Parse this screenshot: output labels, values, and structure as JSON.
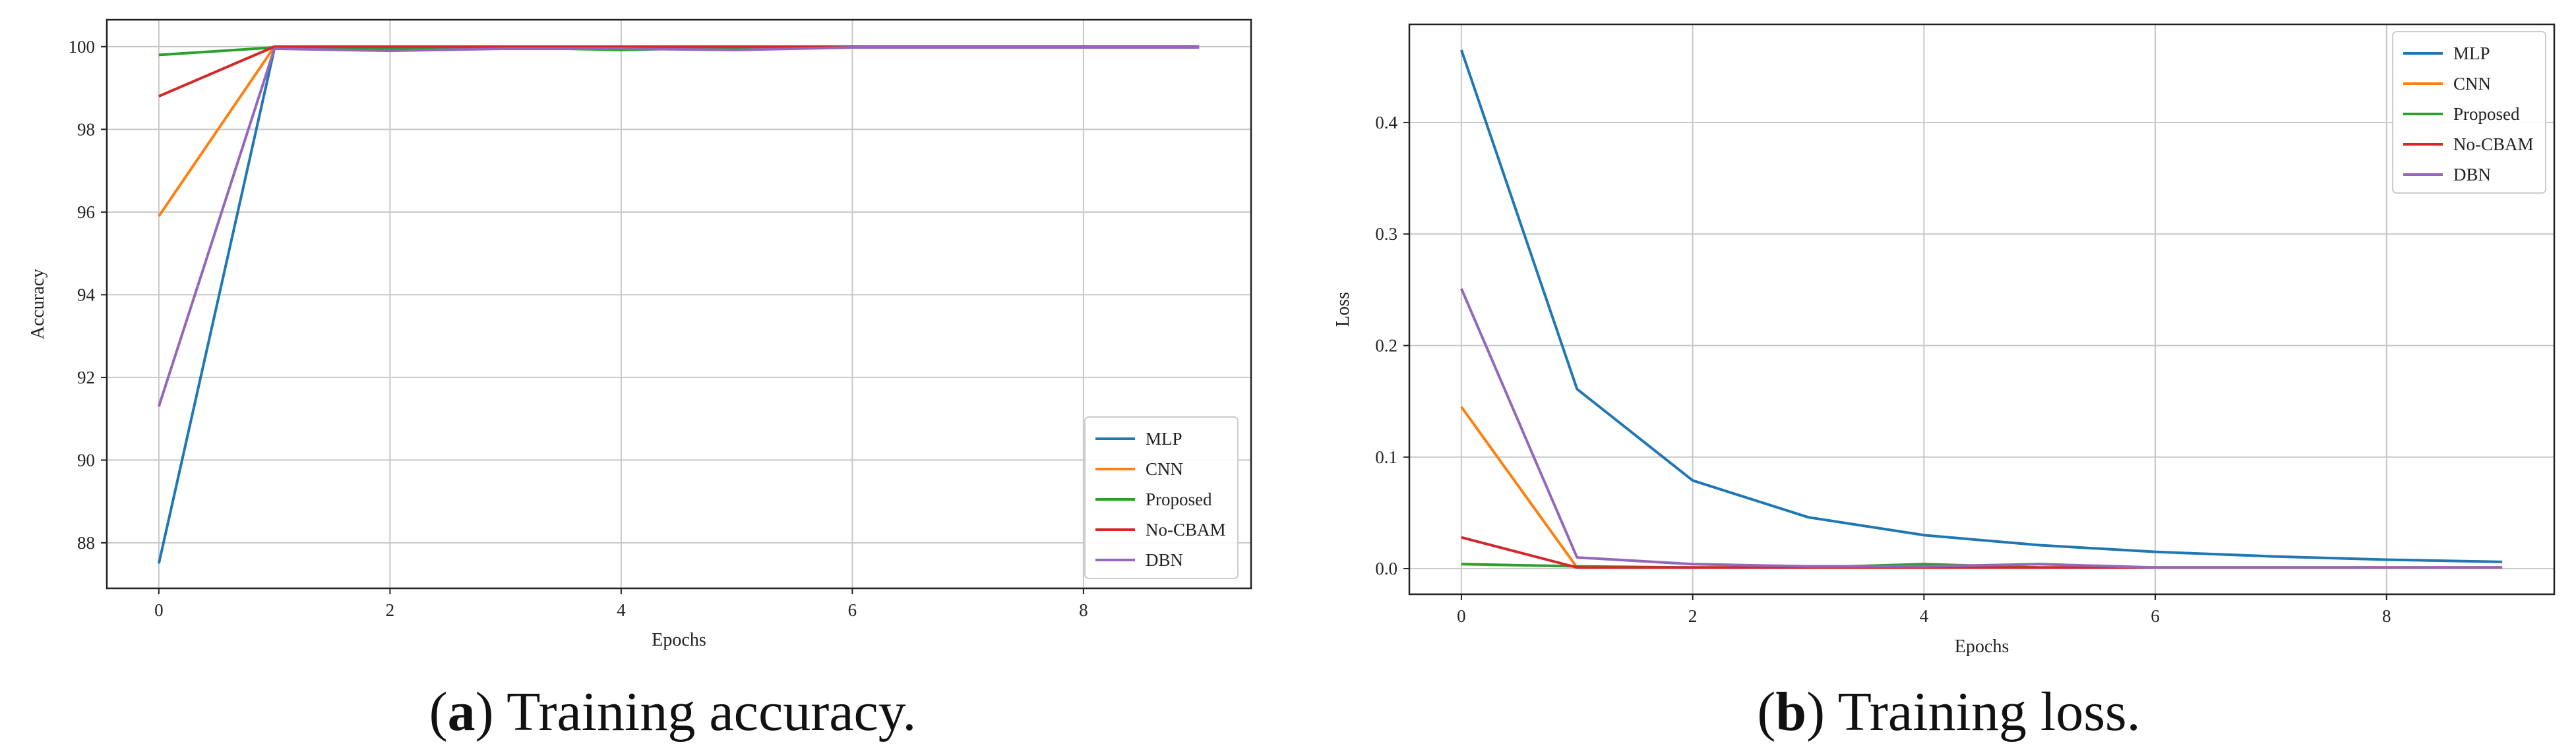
{
  "figure": {
    "captions": [
      {
        "letter": "a",
        "text": "Training accuracy."
      },
      {
        "letter": "b",
        "text": "Training loss."
      }
    ]
  },
  "colors": {
    "MLP": "#1f77b4",
    "CNN": "#ff7f0e",
    "Proposed": "#2ca02c",
    "No-CBAM": "#d62728",
    "DBN": "#9467bd"
  },
  "chart_data": [
    {
      "type": "line",
      "title": "",
      "xlabel": "Epochs",
      "ylabel": "Accuracy",
      "x": [
        0,
        1,
        2,
        3,
        4,
        5,
        6,
        7,
        8,
        9
      ],
      "xlim": [
        -0.45,
        9.45
      ],
      "ylim": [
        86.9,
        100.65
      ],
      "xticks": [
        0,
        2,
        4,
        6,
        8
      ],
      "yticks": [
        88,
        90,
        92,
        94,
        96,
        98,
        100
      ],
      "grid": true,
      "legend_position": "lower-right",
      "series": [
        {
          "name": "MLP",
          "values": [
            87.5,
            99.95,
            99.95,
            99.95,
            99.95,
            99.95,
            99.98,
            99.98,
            99.98,
            99.98
          ]
        },
        {
          "name": "CNN",
          "values": [
            95.9,
            100,
            100,
            100,
            100,
            100,
            100,
            100,
            100,
            100
          ]
        },
        {
          "name": "Proposed",
          "values": [
            99.8,
            99.98,
            99.98,
            99.98,
            99.92,
            99.98,
            99.98,
            99.98,
            99.98,
            99.98
          ]
        },
        {
          "name": "No-CBAM",
          "values": [
            98.8,
            100,
            100,
            100,
            100,
            100,
            100,
            100,
            100,
            100
          ]
        },
        {
          "name": "DBN",
          "values": [
            91.3,
            99.95,
            99.9,
            99.95,
            99.95,
            99.92,
            99.98,
            99.98,
            99.98,
            99.98
          ]
        }
      ]
    },
    {
      "type": "line",
      "title": "",
      "xlabel": "Epochs",
      "ylabel": "Loss",
      "x": [
        0,
        1,
        2,
        3,
        4,
        5,
        6,
        7,
        8,
        9
      ],
      "xlim": [
        -0.45,
        9.45
      ],
      "ylim": [
        -0.023,
        0.488
      ],
      "xticks": [
        0,
        2,
        4,
        6,
        8
      ],
      "yticks": [
        0.0,
        0.1,
        0.2,
        0.3,
        0.4
      ],
      "ytick_labels": [
        "0.0",
        "0.1",
        "0.2",
        "0.3",
        "0.4"
      ],
      "grid": true,
      "legend_position": "upper-right",
      "series": [
        {
          "name": "MLP",
          "values": [
            0.465,
            0.161,
            0.079,
            0.046,
            0.03,
            0.021,
            0.015,
            0.011,
            0.008,
            0.006
          ]
        },
        {
          "name": "CNN",
          "values": [
            0.145,
            0.001,
            0.001,
            0.001,
            0.001,
            0.001,
            0.001,
            0.001,
            0.001,
            0.001
          ]
        },
        {
          "name": "Proposed",
          "values": [
            0.004,
            0.002,
            0.001,
            0.001,
            0.004,
            0.001,
            0.001,
            0.001,
            0.001,
            0.001
          ]
        },
        {
          "name": "No-CBAM",
          "values": [
            0.028,
            0.001,
            0.001,
            0.001,
            0.001,
            0.001,
            0.001,
            0.001,
            0.001,
            0.001
          ]
        },
        {
          "name": "DBN",
          "values": [
            0.251,
            0.01,
            0.004,
            0.002,
            0.002,
            0.004,
            0.001,
            0.001,
            0.001,
            0.001
          ]
        }
      ]
    }
  ]
}
